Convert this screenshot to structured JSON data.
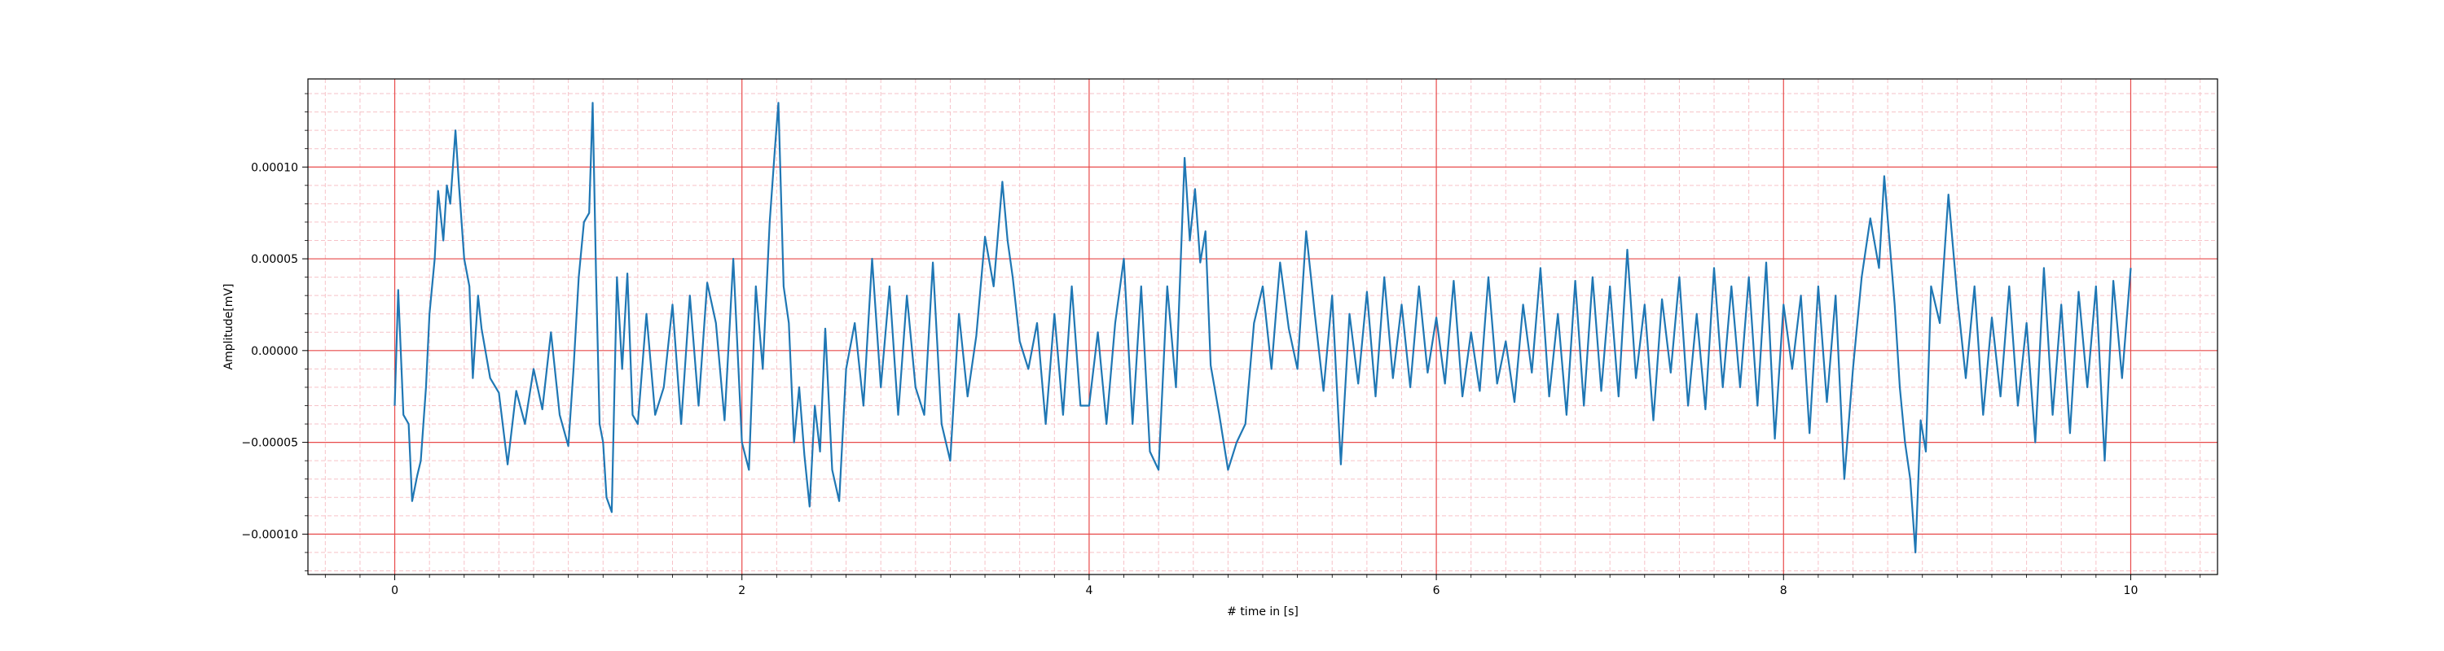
{
  "chart_data": {
    "type": "line",
    "title": "",
    "xlabel": "# time in [s]",
    "ylabel": "Amplitude[mV]",
    "xlim": [
      -0.5,
      10.5
    ],
    "ylim": [
      -0.000122,
      0.000148
    ],
    "xticks": [
      0,
      2,
      4,
      6,
      8,
      10
    ],
    "xtick_labels": [
      "0",
      "2",
      "4",
      "6",
      "8",
      "10"
    ],
    "yticks": [
      -0.0001,
      -5e-05,
      0,
      5e-05,
      0.0001
    ],
    "ytick_labels": [
      "−0.00010",
      "−0.00005",
      "0.00000",
      "0.00005",
      "0.00010"
    ],
    "grid": {
      "major": true,
      "minor": true,
      "major_color": "#e84a4a",
      "minor_color": "#f6c2c8"
    },
    "series": [
      {
        "color": "#1f77b4",
        "x": [
          0.0,
          0.02,
          0.05,
          0.08,
          0.1,
          0.13,
          0.15,
          0.18,
          0.2,
          0.23,
          0.25,
          0.28,
          0.3,
          0.32,
          0.35,
          0.37,
          0.4,
          0.43,
          0.45,
          0.48,
          0.5,
          0.55,
          0.6,
          0.65,
          0.7,
          0.75,
          0.8,
          0.85,
          0.9,
          0.95,
          1.0,
          1.03,
          1.06,
          1.09,
          1.12,
          1.14,
          1.16,
          1.18,
          1.2,
          1.22,
          1.25,
          1.28,
          1.31,
          1.34,
          1.37,
          1.4,
          1.45,
          1.5,
          1.55,
          1.6,
          1.65,
          1.7,
          1.75,
          1.8,
          1.85,
          1.9,
          1.95,
          2.0,
          2.04,
          2.08,
          2.12,
          2.16,
          2.19,
          2.21,
          2.24,
          2.27,
          2.3,
          2.33,
          2.36,
          2.39,
          2.42,
          2.45,
          2.48,
          2.52,
          2.56,
          2.6,
          2.65,
          2.7,
          2.75,
          2.8,
          2.85,
          2.9,
          2.95,
          3.0,
          3.05,
          3.1,
          3.15,
          3.2,
          3.25,
          3.3,
          3.35,
          3.4,
          3.45,
          3.5,
          3.53,
          3.56,
          3.6,
          3.65,
          3.7,
          3.75,
          3.8,
          3.85,
          3.9,
          3.95,
          4.0,
          4.05,
          4.1,
          4.15,
          4.2,
          4.25,
          4.3,
          4.35,
          4.4,
          4.45,
          4.5,
          4.55,
          4.58,
          4.61,
          4.64,
          4.67,
          4.7,
          4.75,
          4.8,
          4.85,
          4.9,
          4.95,
          5.0,
          5.05,
          5.1,
          5.15,
          5.2,
          5.25,
          5.3,
          5.35,
          5.4,
          5.45,
          5.5,
          5.55,
          5.6,
          5.65,
          5.7,
          5.75,
          5.8,
          5.85,
          5.9,
          5.95,
          6.0,
          6.05,
          6.1,
          6.15,
          6.2,
          6.25,
          6.3,
          6.35,
          6.4,
          6.45,
          6.5,
          6.55,
          6.6,
          6.65,
          6.7,
          6.75,
          6.8,
          6.85,
          6.9,
          6.95,
          7.0,
          7.05,
          7.1,
          7.15,
          7.2,
          7.25,
          7.3,
          7.35,
          7.4,
          7.45,
          7.5,
          7.55,
          7.6,
          7.65,
          7.7,
          7.75,
          7.8,
          7.85,
          7.9,
          7.95,
          8.0,
          8.05,
          8.1,
          8.15,
          8.2,
          8.25,
          8.3,
          8.35,
          8.4,
          8.45,
          8.5,
          8.55,
          8.58,
          8.61,
          8.64,
          8.67,
          8.7,
          8.73,
          8.76,
          8.79,
          8.82,
          8.85,
          8.9,
          8.95,
          9.0,
          9.05,
          9.1,
          9.15,
          9.2,
          9.25,
          9.3,
          9.35,
          9.4,
          9.45,
          9.5,
          9.55,
          9.6,
          9.65,
          9.7,
          9.75,
          9.8,
          9.85,
          9.9,
          9.95,
          10.0
        ],
        "y": [
          -3e-05,
          3.3e-05,
          -3.5e-05,
          -4e-05,
          -8.2e-05,
          -6.8e-05,
          -6e-05,
          -2e-05,
          2e-05,
          5e-05,
          8.7e-05,
          6e-05,
          9e-05,
          8e-05,
          0.00012,
          9e-05,
          5e-05,
          3.5e-05,
          -1.5e-05,
          3e-05,
          1.2e-05,
          -1.5e-05,
          -2.3e-05,
          -6.2e-05,
          -2.2e-05,
          -4e-05,
          -1e-05,
          -3.2e-05,
          1e-05,
          -3.5e-05,
          -5.2e-05,
          -1e-05,
          4e-05,
          7e-05,
          7.5e-05,
          0.000135,
          4e-05,
          -4e-05,
          -5e-05,
          -8e-05,
          -8.8e-05,
          4e-05,
          -1e-05,
          4.2e-05,
          -3.5e-05,
          -4e-05,
          2e-05,
          -3.5e-05,
          -2e-05,
          2.5e-05,
          -4e-05,
          3e-05,
          -3e-05,
          3.7e-05,
          1.5e-05,
          -3.8e-05,
          5e-05,
          -5e-05,
          -6.5e-05,
          3.5e-05,
          -1e-05,
          7e-05,
          0.00011,
          0.000135,
          3.5e-05,
          1.5e-05,
          -5e-05,
          -2e-05,
          -5.7e-05,
          -8.5e-05,
          -3e-05,
          -5.5e-05,
          1.2e-05,
          -6.5e-05,
          -8.2e-05,
          -1e-05,
          1.5e-05,
          -3e-05,
          5e-05,
          -2e-05,
          3.5e-05,
          -3.5e-05,
          3e-05,
          -2e-05,
          -3.5e-05,
          4.8e-05,
          -4e-05,
          -6e-05,
          2e-05,
          -2.5e-05,
          8e-06,
          6.2e-05,
          3.5e-05,
          9.2e-05,
          6e-05,
          4e-05,
          5e-06,
          -1e-05,
          1.5e-05,
          -4e-05,
          2e-05,
          -3.5e-05,
          3.5e-05,
          -3e-05,
          -3e-05,
          1e-05,
          -4e-05,
          1.5e-05,
          5e-05,
          -4e-05,
          3.5e-05,
          -5.5e-05,
          -6.5e-05,
          3.5e-05,
          -2e-05,
          0.000105,
          6e-05,
          8.8e-05,
          4.8e-05,
          6.5e-05,
          -8e-06,
          -3.5e-05,
          -6.5e-05,
          -5e-05,
          -4e-05,
          1.5e-05,
          3.5e-05,
          -1e-05,
          4.8e-05,
          1.2e-05,
          -1e-05,
          6.5e-05,
          2e-05,
          -2.2e-05,
          3e-05,
          -6.2e-05,
          2e-05,
          -1.8e-05,
          3.2e-05,
          -2.5e-05,
          4e-05,
          -1.5e-05,
          2.5e-05,
          -2e-05,
          3.5e-05,
          -1.2e-05,
          1.8e-05,
          -1.8e-05,
          3.8e-05,
          -2.5e-05,
          1e-05,
          -2.2e-05,
          4e-05,
          -1.8e-05,
          5e-06,
          -2.8e-05,
          2.5e-05,
          -1.2e-05,
          4.5e-05,
          -2.5e-05,
          2e-05,
          -3.5e-05,
          3.8e-05,
          -3e-05,
          4e-05,
          -2.2e-05,
          3.5e-05,
          -2.5e-05,
          5.5e-05,
          -1.5e-05,
          2.5e-05,
          -3.8e-05,
          2.8e-05,
          -1.2e-05,
          4e-05,
          -3e-05,
          2e-05,
          -3.2e-05,
          4.5e-05,
          -2e-05,
          3.5e-05,
          -2e-05,
          4e-05,
          -3e-05,
          4.8e-05,
          -4.8e-05,
          2.5e-05,
          -1e-05,
          3e-05,
          -4.5e-05,
          3.5e-05,
          -2.8e-05,
          3e-05,
          -7e-05,
          -1e-05,
          4e-05,
          7.2e-05,
          4.5e-05,
          9.5e-05,
          6e-05,
          2.5e-05,
          -2e-05,
          -5e-05,
          -7e-05,
          -0.00011,
          -3.8e-05,
          -5.5e-05,
          3.5e-05,
          1.5e-05,
          8.5e-05,
          3e-05,
          -1.5e-05,
          3.5e-05,
          -3.5e-05,
          1.8e-05,
          -2.5e-05,
          3.5e-05,
          -3e-05,
          1.5e-05,
          -5e-05,
          4.5e-05,
          -3.5e-05,
          2.5e-05,
          -4.5e-05,
          3.2e-05,
          -2e-05,
          3.5e-05,
          -6e-05,
          3.8e-05,
          -1.5e-05,
          4.5e-05
        ]
      }
    ]
  }
}
